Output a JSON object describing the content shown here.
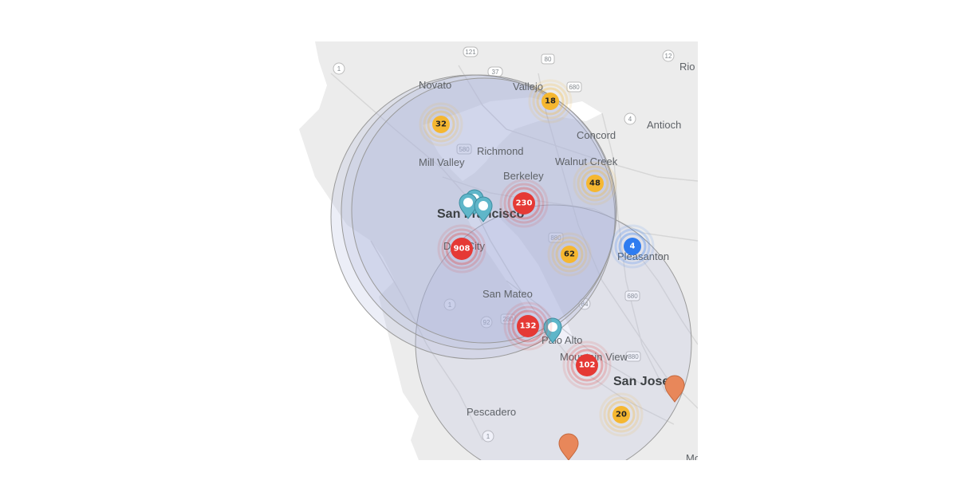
{
  "map": {
    "places": [
      {
        "id": "novato",
        "label": "Novato"
      },
      {
        "id": "vallejo",
        "label": "Vallejo"
      },
      {
        "id": "rio",
        "label": "Rio V"
      },
      {
        "id": "concord",
        "label": "Concord"
      },
      {
        "id": "antioch",
        "label": "Antioch"
      },
      {
        "id": "richmond",
        "label": "Richmond"
      },
      {
        "id": "mill-valley",
        "label": "Mill Valley"
      },
      {
        "id": "walnut-creek",
        "label": "Walnut Creek"
      },
      {
        "id": "berkeley",
        "label": "Berkeley"
      },
      {
        "id": "san-francisco",
        "label": "San Francisco"
      },
      {
        "id": "daly-city",
        "label": "Daly City"
      },
      {
        "id": "pleasanton",
        "label": "Pleasanton"
      },
      {
        "id": "san-mateo",
        "label": "San Mateo"
      },
      {
        "id": "palo-alto",
        "label": "Palo Alto"
      },
      {
        "id": "mountain-view",
        "label": "Mountain View"
      },
      {
        "id": "san-jose",
        "label": "San Jose"
      },
      {
        "id": "pescadero",
        "label": "Pescadero"
      },
      {
        "id": "mo",
        "label": "Mo"
      }
    ],
    "highway_shields": [
      "121",
      "37",
      "80",
      "680",
      "1",
      "12",
      "4",
      "580",
      "880",
      "680",
      "84",
      "92",
      "280",
      "880",
      "1",
      "1"
    ],
    "clusters": [
      {
        "id": "cluster-32",
        "count": "32",
        "color": "#f5b731",
        "level": "medium"
      },
      {
        "id": "cluster-18",
        "count": "18",
        "color": "#f5b731",
        "level": "medium"
      },
      {
        "id": "cluster-48",
        "count": "48",
        "color": "#f5b731",
        "level": "medium"
      },
      {
        "id": "cluster-230",
        "count": "230",
        "color": "#e53935",
        "level": "high"
      },
      {
        "id": "cluster-908",
        "count": "908",
        "color": "#e53935",
        "level": "high"
      },
      {
        "id": "cluster-62",
        "count": "62",
        "color": "#f5b731",
        "level": "medium"
      },
      {
        "id": "cluster-4",
        "count": "4",
        "color": "#2f7cf0",
        "level": "low"
      },
      {
        "id": "cluster-132",
        "count": "132",
        "color": "#e53935",
        "level": "high"
      },
      {
        "id": "cluster-102",
        "count": "102",
        "color": "#e53935",
        "level": "high"
      },
      {
        "id": "cluster-20",
        "count": "20",
        "color": "#f5b731",
        "level": "medium"
      }
    ],
    "pin_colors": {
      "teal": "#5fb6c9",
      "orange": "#e8875a"
    },
    "radius_fill": "#aab0dc",
    "icons": {
      "pin": "map-pin-icon",
      "cluster": "marker-cluster-icon"
    }
  }
}
